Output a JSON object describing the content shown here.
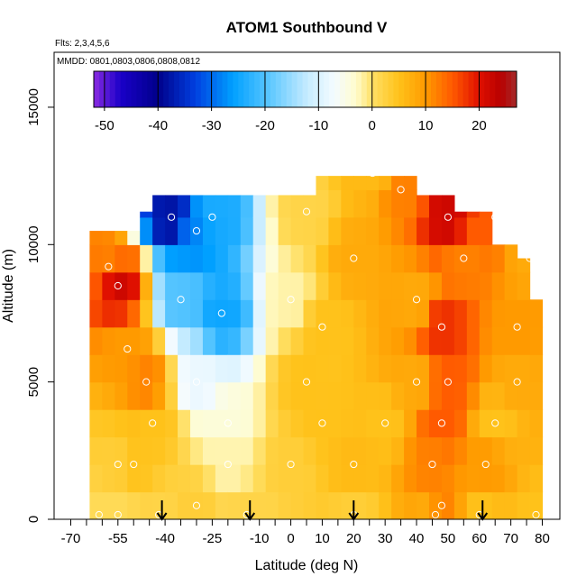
{
  "chart_data": {
    "type": "heatmap",
    "title": "ATOM1 Southbound V",
    "annotations": {
      "flights": "Flts: 2,3,4,5,6",
      "dates": "MMDD: 0801,0803,0806,0808,0812"
    },
    "xlabel": "Latitude (deg N)",
    "ylabel": "Altitude (m)",
    "xlim": [
      -70,
      80
    ],
    "ylim": [
      0,
      17000
    ],
    "x_ticks": [
      -70,
      -55,
      -40,
      -25,
      -10,
      0,
      10,
      20,
      30,
      40,
      50,
      60,
      70,
      80
    ],
    "x_tick_labels": [
      "-70",
      "-55",
      "-40",
      "-25",
      "-10",
      "0",
      "10",
      "20",
      "30",
      "40",
      "50",
      "60",
      "70",
      "80"
    ],
    "y_ticks": [
      0,
      5000,
      10000,
      15000
    ],
    "y_tick_labels": [
      "0",
      "5000",
      "10000",
      "15000"
    ],
    "colorbar": {
      "min": -52,
      "max": 27,
      "ticks": [
        -50,
        -40,
        -30,
        -20,
        -10,
        0,
        10,
        20
      ],
      "tick_labels": [
        "-50",
        "-40",
        "-30",
        "-20",
        "-10",
        "0",
        "10",
        "20"
      ],
      "stops": [
        {
          "v": -52,
          "c": "#8a2be2"
        },
        {
          "v": -47,
          "c": "#1a00c8"
        },
        {
          "v": -40,
          "c": "#00008b"
        },
        {
          "v": -33,
          "c": "#0040e0"
        },
        {
          "v": -26,
          "c": "#00a0ff"
        },
        {
          "v": -19,
          "c": "#5ec8ff"
        },
        {
          "v": -12,
          "c": "#c8ecff"
        },
        {
          "v": -7,
          "c": "#f4fbff"
        },
        {
          "v": -3,
          "c": "#fffccd"
        },
        {
          "v": 0,
          "c": "#ffe066"
        },
        {
          "v": 5,
          "c": "#ffc21a"
        },
        {
          "v": 10,
          "c": "#ff9a00"
        },
        {
          "v": 15,
          "c": "#ff5a00"
        },
        {
          "v": 20,
          "c": "#e01000"
        },
        {
          "v": 24,
          "c": "#b80000"
        },
        {
          "v": 27,
          "c": "#a52a2a"
        }
      ]
    },
    "arrows_latitude": [
      -41,
      -13,
      20,
      61
    ],
    "grid_x_centers": [
      -62,
      -58,
      -54,
      -50,
      -46,
      -42,
      -38,
      -34,
      -30,
      -26,
      -22,
      -18,
      -14,
      -10,
      -6,
      -2,
      2,
      6,
      10,
      14,
      18,
      22,
      26,
      30,
      34,
      38,
      42,
      46,
      50,
      54,
      58,
      62,
      66,
      70,
      74,
      78
    ],
    "grid_y_centers": [
      500,
      1500,
      2500,
      3500,
      4500,
      5500,
      6500,
      7500,
      8500,
      9500,
      10500,
      11500,
      12500
    ],
    "grid_top_altitude": [
      10500,
      10500,
      10500,
      10500,
      11200,
      11800,
      11800,
      11800,
      11800,
      11800,
      11800,
      11800,
      11800,
      11800,
      11800,
      11800,
      11800,
      11800,
      12500,
      12500,
      12500,
      12500,
      12500,
      12500,
      12500,
      12500,
      11800,
      11800,
      11800,
      11200,
      11200,
      11200,
      10000,
      10000,
      9500,
      8000
    ],
    "observations": [
      {
        "x": -61,
        "y": 50,
        "v": 1
      },
      {
        "x": -55,
        "y": 50,
        "v": 1
      },
      {
        "x": -42,
        "y": 50,
        "v": 2
      },
      {
        "x": -14,
        "y": 50,
        "v": 2
      },
      {
        "x": 20,
        "y": 50,
        "v": 3
      },
      {
        "x": 46,
        "y": 50,
        "v": 6
      },
      {
        "x": 60,
        "y": 50,
        "v": 5
      },
      {
        "x": 78,
        "y": 50,
        "v": 5
      },
      {
        "x": -30,
        "y": 500,
        "v": 3
      },
      {
        "x": 48,
        "y": 500,
        "v": 12
      },
      {
        "x": -55,
        "y": 2000,
        "v": 3
      },
      {
        "x": -50,
        "y": 2000,
        "v": 5
      },
      {
        "x": -20,
        "y": 2000,
        "v": -2
      },
      {
        "x": 0,
        "y": 2000,
        "v": 3
      },
      {
        "x": 20,
        "y": 2000,
        "v": 6
      },
      {
        "x": 45,
        "y": 2000,
        "v": 12
      },
      {
        "x": 62,
        "y": 2000,
        "v": 10
      },
      {
        "x": -44,
        "y": 3500,
        "v": 5
      },
      {
        "x": -20,
        "y": 3500,
        "v": -4
      },
      {
        "x": 10,
        "y": 3500,
        "v": 5
      },
      {
        "x": 30,
        "y": 3500,
        "v": 5
      },
      {
        "x": 48,
        "y": 3500,
        "v": 15
      },
      {
        "x": 65,
        "y": 3500,
        "v": 5
      },
      {
        "x": -46,
        "y": 5000,
        "v": 12
      },
      {
        "x": -30,
        "y": 5000,
        "v": -8
      },
      {
        "x": 5,
        "y": 5000,
        "v": 5
      },
      {
        "x": 40,
        "y": 5000,
        "v": 8
      },
      {
        "x": 50,
        "y": 5000,
        "v": 15
      },
      {
        "x": 72,
        "y": 5000,
        "v": 8
      },
      {
        "x": -52,
        "y": 6200,
        "v": 10
      },
      {
        "x": -22,
        "y": 7500,
        "v": -25
      },
      {
        "x": 10,
        "y": 7000,
        "v": 5
      },
      {
        "x": 48,
        "y": 7000,
        "v": 18
      },
      {
        "x": 72,
        "y": 7000,
        "v": 10
      },
      {
        "x": -55,
        "y": 8500,
        "v": 22
      },
      {
        "x": -35,
        "y": 8000,
        "v": -20
      },
      {
        "x": 0,
        "y": 8000,
        "v": -2
      },
      {
        "x": 40,
        "y": 8000,
        "v": 8
      },
      {
        "x": -58,
        "y": 9200,
        "v": 12
      },
      {
        "x": -30,
        "y": 10500,
        "v": -28
      },
      {
        "x": 20,
        "y": 9500,
        "v": 8
      },
      {
        "x": 55,
        "y": 9500,
        "v": 12
      },
      {
        "x": 76,
        "y": 9500,
        "v": 8
      },
      {
        "x": -38,
        "y": 11000,
        "v": -38
      },
      {
        "x": -25,
        "y": 11000,
        "v": -24
      },
      {
        "x": 5,
        "y": 11200,
        "v": 2
      },
      {
        "x": 50,
        "y": 11000,
        "v": 22
      },
      {
        "x": 65,
        "y": 11000,
        "v": 15
      },
      {
        "x": 35,
        "y": 12000,
        "v": 12
      },
      {
        "x": 26,
        "y": 12600,
        "v": 6
      }
    ]
  }
}
